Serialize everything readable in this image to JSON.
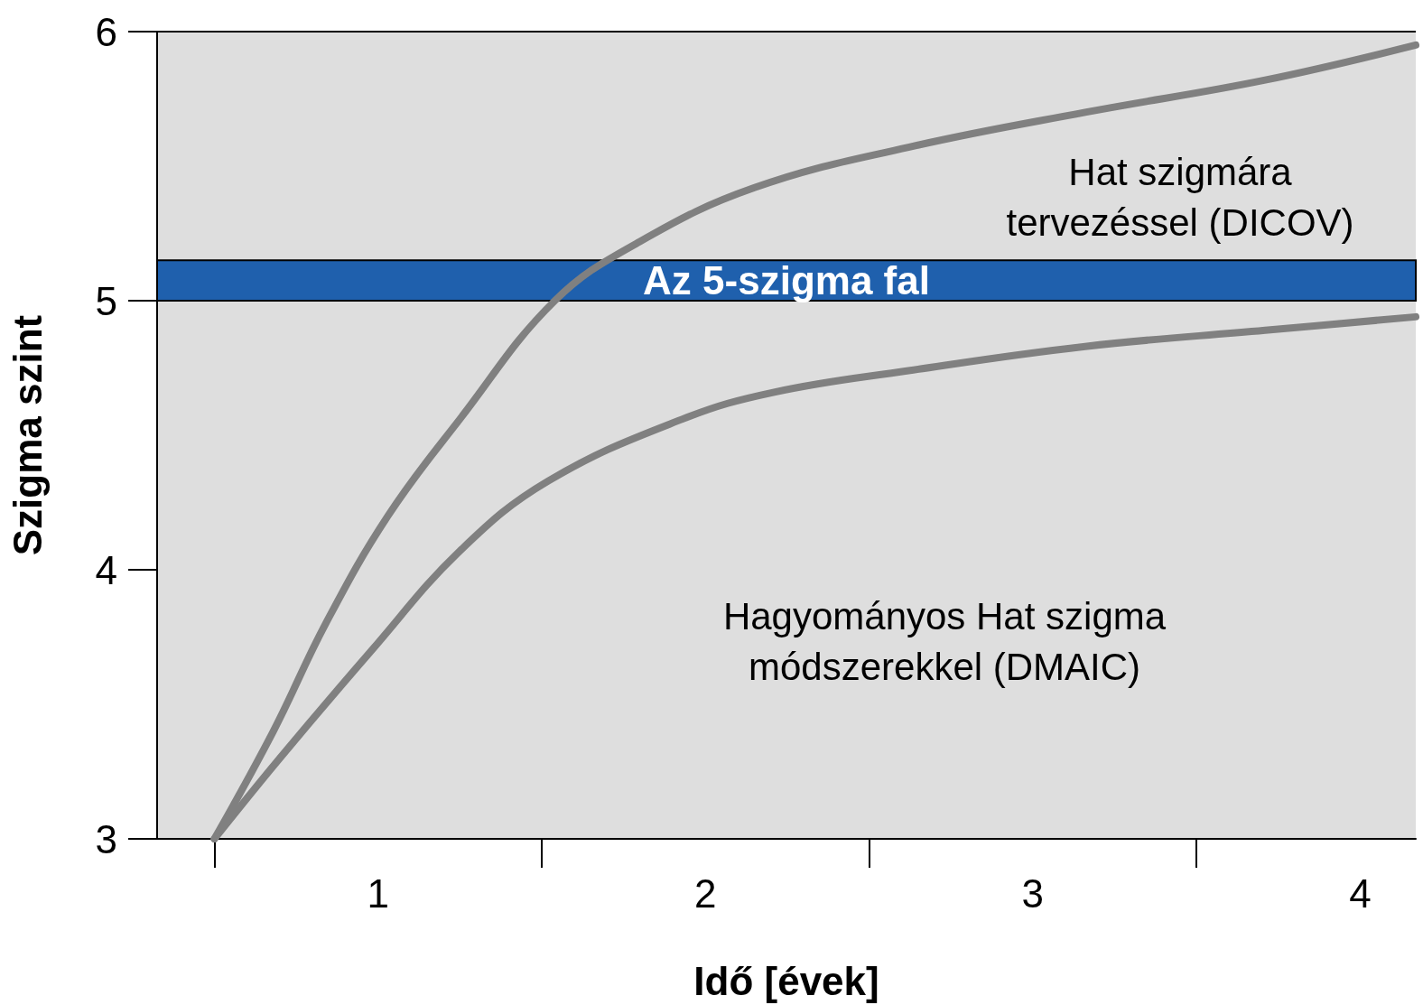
{
  "chart_data": {
    "type": "line",
    "xlabel": "Idő [évek]",
    "ylabel": "Szigma szint",
    "xlim": [
      -0.175,
      3.67
    ],
    "ylim": [
      3,
      6
    ],
    "yticks": [
      3,
      4,
      5,
      6
    ],
    "xticks": [
      {
        "value": 0.5,
        "label": "1"
      },
      {
        "value": 1.5,
        "label": "2"
      },
      {
        "value": 2.5,
        "label": "3"
      },
      {
        "value": 3.5,
        "label": "4"
      }
    ],
    "line_style": "solid",
    "series": [
      {
        "color": "#808080",
        "x": [
          0,
          0.18,
          0.34,
          0.53,
          0.75,
          1.04,
          1.3,
          1.65,
          2.12,
          2.66,
          3.21,
          3.67
        ],
        "values": [
          3,
          3.4,
          3.8,
          4.2,
          4.56,
          5.0,
          5.22,
          5.42,
          5.57,
          5.7,
          5.82,
          5.95
        ]
      },
      {
        "color": "#808080",
        "x": [
          0,
          0.2,
          0.48,
          0.75,
          1.02,
          1.43,
          1.71,
          2.12,
          2.66,
          3.21,
          3.67
        ],
        "values": [
          3,
          3.3,
          3.7,
          4.07,
          4.33,
          4.56,
          4.66,
          4.74,
          4.83,
          4.89,
          4.94
        ]
      }
    ],
    "bands": [
      {
        "axis": "y",
        "from": 5,
        "to": 5.15,
        "label": "Az 5-szigma fal",
        "color": "#1f60ad"
      }
    ],
    "annotations": [
      "Hat szigmára\ntervezéssel (DICOV)",
      "Hagyományos Hat szigma\nmódszerekkel (DMAIC)"
    ]
  }
}
